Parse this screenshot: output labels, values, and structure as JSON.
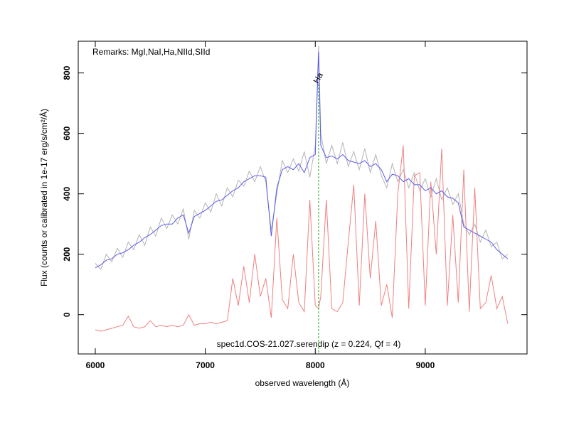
{
  "chart_data": {
    "type": "line",
    "title": "Remarks: MgI,NaI,Ha,NIId,SIId",
    "subtitle": "spec1d.COS-21.027.serendip (z = 0.224, Qf = 4)",
    "x_label": "observed wavelength (Å)",
    "y_label": "Flux (counts or calibrated in 1e-17 erg/s/cm²/Å)",
    "x": [
      6000,
      6050,
      6100,
      6150,
      6200,
      6250,
      6300,
      6350,
      6400,
      6450,
      6500,
      6550,
      6600,
      6650,
      6700,
      6750,
      6800,
      6850,
      6900,
      6950,
      7000,
      7050,
      7100,
      7150,
      7200,
      7250,
      7300,
      7350,
      7400,
      7450,
      7500,
      7550,
      7600,
      7650,
      7700,
      7750,
      7800,
      7850,
      7900,
      7950,
      8000,
      8030,
      8050,
      8100,
      8150,
      8200,
      8250,
      8300,
      8350,
      8400,
      8450,
      8500,
      8550,
      8600,
      8650,
      8700,
      8750,
      8800,
      8850,
      8900,
      8950,
      9000,
      9050,
      9100,
      9150,
      9200,
      9250,
      9300,
      9350,
      9400,
      9450,
      9500,
      9550,
      9600,
      9650,
      9700,
      9750
    ],
    "series": [
      {
        "color": "#b4b4b4",
        "values": [
          170,
          150,
          200,
          175,
          220,
          190,
          240,
          215,
          265,
          230,
          290,
          260,
          320,
          285,
          330,
          300,
          350,
          250,
          345,
          320,
          370,
          340,
          400,
          360,
          420,
          390,
          445,
          425,
          475,
          440,
          490,
          440,
          280,
          400,
          510,
          470,
          515,
          475,
          540,
          455,
          560,
          890,
          600,
          500,
          560,
          500,
          570,
          490,
          540,
          480,
          550,
          470,
          530,
          460,
          420,
          500,
          440,
          480,
          420,
          470,
          410,
          450,
          390,
          450,
          380,
          420,
          365,
          400,
          300,
          265,
          300,
          240,
          280,
          225,
          240,
          185,
          200
        ]
      },
      {
        "color": "#f08080",
        "values": [
          -50,
          -55,
          -50,
          -45,
          -40,
          -35,
          -5,
          -40,
          -45,
          -40,
          -20,
          -40,
          -35,
          -40,
          -35,
          -40,
          -35,
          0,
          -35,
          -30,
          -30,
          -25,
          -30,
          -25,
          -20,
          120,
          30,
          160,
          40,
          200,
          60,
          120,
          -10,
          320,
          50,
          20,
          200,
          40,
          10,
          380,
          30,
          20,
          60,
          380,
          20,
          10,
          40,
          240,
          430,
          30,
          400,
          120,
          310,
          30,
          100,
          -10,
          400,
          560,
          20,
          460,
          470,
          30,
          440,
          200,
          550,
          30,
          330,
          40,
          480,
          10,
          420,
          20,
          40,
          130,
          20,
          60,
          -30
        ]
      },
      {
        "color": "#5a5aee",
        "values": [
          155,
          165,
          180,
          185,
          200,
          205,
          215,
          230,
          240,
          255,
          265,
          280,
          295,
          300,
          300,
          320,
          330,
          270,
          325,
          335,
          345,
          360,
          375,
          380,
          395,
          410,
          420,
          440,
          450,
          460,
          460,
          455,
          260,
          420,
          480,
          490,
          480,
          500,
          470,
          520,
          530,
          870,
          560,
          520,
          525,
          515,
          530,
          510,
          505,
          500,
          510,
          490,
          500,
          480,
          440,
          465,
          460,
          440,
          450,
          430,
          430,
          410,
          420,
          400,
          410,
          390,
          385,
          370,
          290,
          280,
          270,
          260,
          250,
          240,
          215,
          200,
          185
        ]
      }
    ],
    "annotations": [
      {
        "text": "Ha",
        "x": 8030,
        "color": "#22aa22"
      }
    ],
    "xlim": [
      5845,
      9925
    ],
    "ylim": [
      -130,
      905
    ],
    "xticks": [
      6000,
      7000,
      8000,
      9000
    ],
    "yticks": [
      0,
      200,
      400,
      600,
      800
    ]
  }
}
